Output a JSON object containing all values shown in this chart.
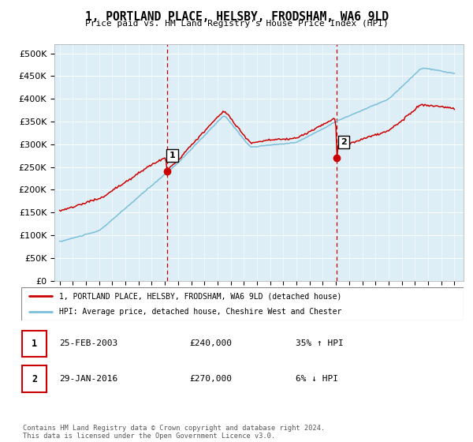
{
  "title": "1, PORTLAND PLACE, HELSBY, FRODSHAM, WA6 9LD",
  "subtitle": "Price paid vs. HM Land Registry's House Price Index (HPI)",
  "ylabel_ticks": [
    "£0",
    "£50K",
    "£100K",
    "£150K",
    "£200K",
    "£250K",
    "£300K",
    "£350K",
    "£400K",
    "£450K",
    "£500K"
  ],
  "ytick_values": [
    0,
    50000,
    100000,
    150000,
    200000,
    250000,
    300000,
    350000,
    400000,
    450000,
    500000
  ],
  "ylim": [
    0,
    520000
  ],
  "hpi_color": "#7bbfdb",
  "price_color": "#cc0000",
  "transaction1_date": 2003.15,
  "transaction1_price": 240000,
  "transaction1_label": "1",
  "transaction2_date": 2016.08,
  "transaction2_price": 270000,
  "transaction2_label": "2",
  "legend_line1": "1, PORTLAND PLACE, HELSBY, FRODSHAM, WA6 9LD (detached house)",
  "legend_line2": "HPI: Average price, detached house, Cheshire West and Chester",
  "table_row1_num": "1",
  "table_row1_date": "25-FEB-2003",
  "table_row1_price": "£240,000",
  "table_row1_hpi": "35% ↑ HPI",
  "table_row2_num": "2",
  "table_row2_date": "29-JAN-2016",
  "table_row2_price": "£270,000",
  "table_row2_hpi": "6% ↓ HPI",
  "footer": "Contains HM Land Registry data © Crown copyright and database right 2024.\nThis data is licensed under the Open Government Licence v3.0.",
  "background_color": "#ffffff",
  "plot_bg_color": "#ddeef6"
}
